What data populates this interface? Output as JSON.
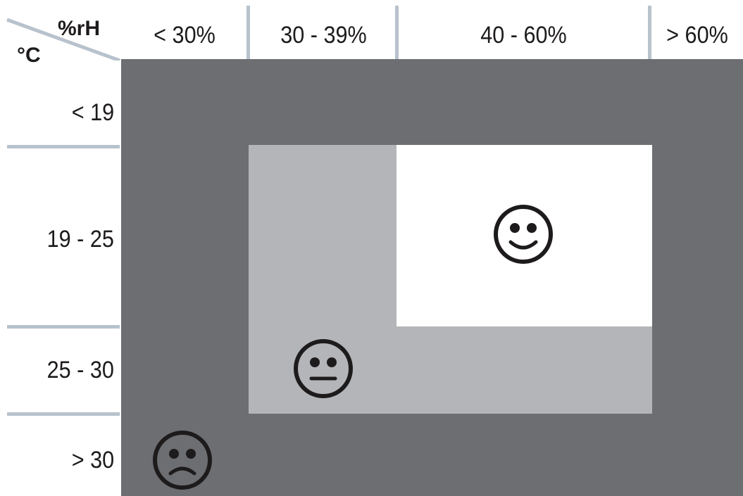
{
  "corner": {
    "rh_unit": "%rH",
    "temp_unit": "°C"
  },
  "columns": [
    "< 30%",
    "30 - 39%",
    "40 - 60%",
    "> 60%"
  ],
  "rows": [
    "< 19",
    "19 - 25",
    "25 - 30",
    "> 30"
  ],
  "colors": {
    "poor": "#6d6e72",
    "fair": "#b4b5b9",
    "good": "#ffffff",
    "separator": "#b7c2cc",
    "face": "#1e1b1c"
  },
  "zones": [
    {
      "level": "poor",
      "face": "sad-face-icon",
      "cells": "all remaining cells"
    },
    {
      "level": "fair",
      "face": "neutral-face-icon",
      "cells": "30 - 60% rH with 19 - 30 °C"
    },
    {
      "level": "good",
      "face": "happy-face-icon",
      "cells": "40 - 60% rH with 19 - 25 °C"
    }
  ]
}
